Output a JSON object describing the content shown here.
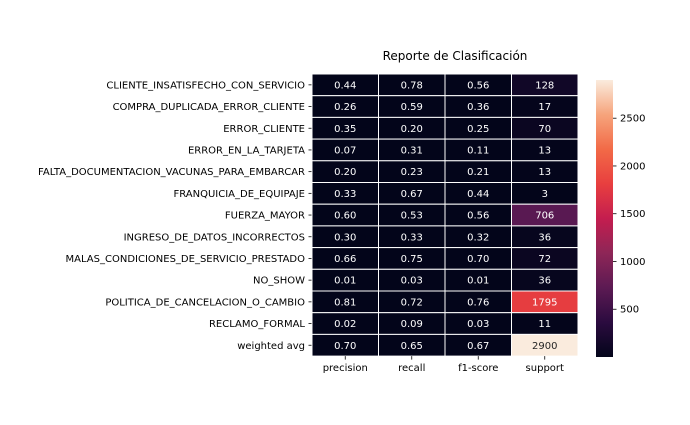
{
  "chart_data": {
    "type": "heatmap",
    "title": "Reporte de Clasificación",
    "rows": [
      "CLIENTE_INSATISFECHO_CON_SERVICIO",
      "COMPRA_DUPLICADA_ERROR_CLIENTE",
      "ERROR_CLIENTE",
      "ERROR_EN_LA_TARJETA",
      "FALTA_DOCUMENTACION_VACUNAS_PARA_EMBARCAR",
      "FRANQUICIA_DE_EQUIPAJE",
      "FUERZA_MAYOR",
      "INGRESO_DE_DATOS_INCORRECTOS",
      "MALAS_CONDICIONES_DE_SERVICIO_PRESTADO",
      "NO_SHOW",
      "POLITICA_DE_CANCELACION_O_CAMBIO",
      "RECLAMO_FORMAL",
      "weighted avg"
    ],
    "columns": [
      "precision",
      "recall",
      "f1-score",
      "support"
    ],
    "cells": [
      [
        "0.44",
        "0.78",
        "0.56",
        "128"
      ],
      [
        "0.26",
        "0.59",
        "0.36",
        "17"
      ],
      [
        "0.35",
        "0.20",
        "0.25",
        "70"
      ],
      [
        "0.07",
        "0.31",
        "0.11",
        "13"
      ],
      [
        "0.20",
        "0.23",
        "0.21",
        "13"
      ],
      [
        "0.33",
        "0.67",
        "0.44",
        "3"
      ],
      [
        "0.60",
        "0.53",
        "0.56",
        "706"
      ],
      [
        "0.30",
        "0.33",
        "0.32",
        "36"
      ],
      [
        "0.66",
        "0.75",
        "0.70",
        "72"
      ],
      [
        "0.01",
        "0.03",
        "0.01",
        "36"
      ],
      [
        "0.81",
        "0.72",
        "0.76",
        "1795"
      ],
      [
        "0.02",
        "0.09",
        "0.03",
        "11"
      ],
      [
        "0.70",
        "0.65",
        "0.67",
        "2900"
      ]
    ],
    "colorbar": {
      "vmin": 0,
      "vmax": 2900,
      "ticks": [
        "500",
        "1000",
        "1500",
        "2000",
        "2500"
      ]
    },
    "colormap": [
      "#03051a",
      "#2b0b3f",
      "#5c1a53",
      "#8e2657",
      "#c41d4f",
      "#e83f3f",
      "#f26a47",
      "#f6a47c",
      "#faebdd"
    ]
  }
}
